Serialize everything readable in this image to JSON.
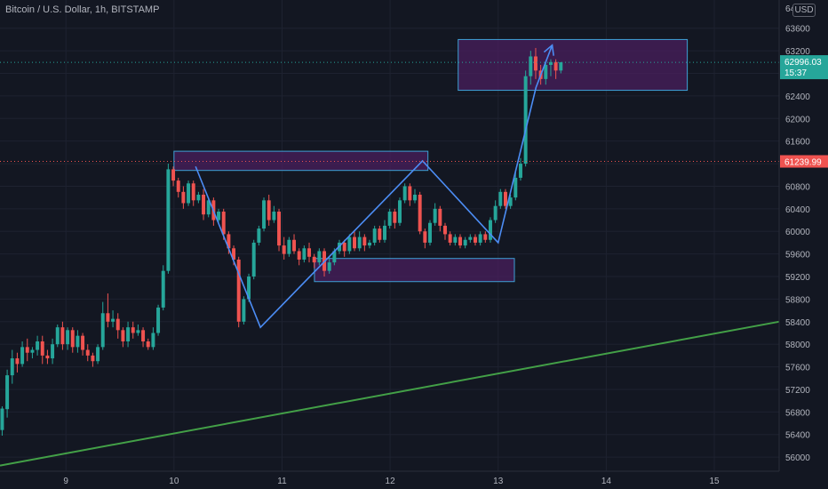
{
  "header": {
    "title": "Bitcoin / U.S. Dollar, 1h, BITSTAMP"
  },
  "price_axis": {
    "currency": "USD",
    "top_label": "64"
  },
  "colors": {
    "background": "#131722",
    "grid": "#1e2230",
    "axis_text": "#b2b5be",
    "up": "#26a69a",
    "down": "#ef5350",
    "trendline": "#43a047",
    "pattern": "#4c8df5",
    "zone_fill": "#4a1f5e",
    "zone_stroke": "#3ea1d6",
    "last_price_bg": "#26a69a",
    "level_bg": "#ef5350"
  },
  "last_price": {
    "value": "62996.03",
    "countdown": "15:37"
  },
  "marked_level": {
    "value": "61239.99"
  },
  "chart_data": {
    "type": "candlestick",
    "yticks": [
      56000,
      56400,
      56800,
      57200,
      57600,
      58000,
      58400,
      58800,
      59200,
      59600,
      60000,
      60400,
      60800,
      61200,
      61600,
      62000,
      62400,
      62800,
      63200,
      63600
    ],
    "xticks": [
      {
        "label": "9",
        "x": 9
      },
      {
        "label": "10",
        "x": 10
      },
      {
        "label": "11",
        "x": 11
      },
      {
        "label": "12",
        "x": 12
      },
      {
        "label": "13",
        "x": 13
      },
      {
        "label": "14",
        "x": 14
      },
      {
        "label": "15",
        "x": 15
      }
    ],
    "ylim": [
      55750,
      64100
    ],
    "xlim": [
      8.39,
      15.6
    ],
    "candles": [
      [
        56480,
        56860,
        56380,
        56900
      ],
      [
        56850,
        57450,
        56700,
        57550
      ],
      [
        57450,
        57750,
        57300,
        57900
      ],
      [
        57750,
        57650,
        57500,
        57850
      ],
      [
        57650,
        57950,
        57600,
        58050
      ],
      [
        57950,
        57850,
        57700,
        58100
      ],
      [
        57850,
        57900,
        57750,
        57950
      ],
      [
        57900,
        58050,
        57800,
        58150
      ],
      [
        58050,
        57800,
        57650,
        58150
      ],
      [
        57800,
        57750,
        57650,
        57900
      ],
      [
        57750,
        58000,
        57650,
        58100
      ],
      [
        58000,
        58300,
        57950,
        58350
      ],
      [
        58300,
        58000,
        57900,
        58400
      ],
      [
        58000,
        58250,
        57900,
        58300
      ],
      [
        58250,
        57950,
        57850,
        58300
      ],
      [
        57950,
        58150,
        57850,
        58250
      ],
      [
        58150,
        57900,
        57800,
        58200
      ],
      [
        57900,
        57800,
        57700,
        58000
      ],
      [
        57800,
        57700,
        57600,
        57850
      ],
      [
        57700,
        57950,
        57650,
        58000
      ],
      [
        57950,
        58550,
        57900,
        58750
      ],
      [
        58550,
        58400,
        58300,
        58900
      ],
      [
        58400,
        58450,
        58300,
        58600
      ],
      [
        58450,
        58250,
        58100,
        58550
      ],
      [
        58250,
        58050,
        57950,
        58300
      ],
      [
        58050,
        58300,
        57950,
        58400
      ],
      [
        58300,
        58200,
        58100,
        58400
      ],
      [
        58200,
        58250,
        58150,
        58350
      ],
      [
        58250,
        58050,
        57950,
        58300
      ],
      [
        58050,
        57950,
        57900,
        58100
      ],
      [
        57950,
        58200,
        57900,
        58300
      ],
      [
        58200,
        58650,
        58150,
        58700
      ],
      [
        58650,
        59300,
        58600,
        59400
      ],
      [
        59300,
        61100,
        59250,
        61200
      ],
      [
        61100,
        60900,
        60800,
        61150
      ],
      [
        60900,
        60700,
        60600,
        60950
      ],
      [
        60700,
        60500,
        60400,
        60800
      ],
      [
        60500,
        60850,
        60450,
        60900
      ],
      [
        60850,
        60550,
        60450,
        60900
      ],
      [
        60550,
        60650,
        60500,
        60700
      ],
      [
        60650,
        60300,
        60200,
        60750
      ],
      [
        60300,
        60550,
        60250,
        60600
      ],
      [
        60550,
        60200,
        60100,
        60600
      ],
      [
        60200,
        60350,
        60150,
        60400
      ],
      [
        60350,
        59950,
        59850,
        60400
      ],
      [
        59950,
        59700,
        59600,
        60000
      ],
      [
        59700,
        59500,
        59400,
        59750
      ],
      [
        59500,
        58400,
        58300,
        59550
      ],
      [
        58400,
        58800,
        58350,
        58850
      ],
      [
        58800,
        59200,
        58750,
        59250
      ],
      [
        59200,
        59800,
        59150,
        59850
      ],
      [
        59800,
        60050,
        59750,
        60100
      ],
      [
        60050,
        60550,
        60000,
        60600
      ],
      [
        60550,
        60200,
        60100,
        60650
      ],
      [
        60200,
        60350,
        60150,
        60450
      ],
      [
        60350,
        59750,
        59650,
        60400
      ],
      [
        59750,
        59600,
        59500,
        59900
      ],
      [
        59600,
        59850,
        59550,
        59900
      ],
      [
        59850,
        59650,
        59600,
        59950
      ],
      [
        59650,
        59500,
        59400,
        59700
      ],
      [
        59500,
        59700,
        59450,
        59750
      ],
      [
        59700,
        59550,
        59450,
        59800
      ],
      [
        59550,
        59450,
        59350,
        59600
      ],
      [
        59450,
        59650,
        59400,
        59700
      ],
      [
        59650,
        59300,
        59200,
        59700
      ],
      [
        59300,
        59450,
        59250,
        59550
      ],
      [
        59450,
        59650,
        59400,
        59700
      ],
      [
        59650,
        59800,
        59600,
        59850
      ],
      [
        59800,
        59650,
        59550,
        59850
      ],
      [
        59650,
        59900,
        59600,
        59950
      ],
      [
        59900,
        59700,
        59650,
        60000
      ],
      [
        59700,
        59900,
        59650,
        60000
      ],
      [
        59900,
        59750,
        59650,
        59950
      ],
      [
        59750,
        59800,
        59700,
        59850
      ],
      [
        59800,
        60050,
        59750,
        60100
      ],
      [
        60050,
        59850,
        59800,
        60100
      ],
      [
        59850,
        60100,
        59800,
        60200
      ],
      [
        60100,
        60350,
        60050,
        60400
      ],
      [
        60350,
        60150,
        60050,
        60400
      ],
      [
        60150,
        60550,
        60100,
        60600
      ],
      [
        60550,
        60800,
        60500,
        60850
      ],
      [
        60800,
        60550,
        60450,
        60850
      ],
      [
        60550,
        60650,
        60500,
        60750
      ],
      [
        60650,
        60000,
        59950,
        60700
      ],
      [
        60000,
        59800,
        59700,
        60050
      ],
      [
        59800,
        60150,
        59750,
        60200
      ],
      [
        60150,
        60400,
        60100,
        60500
      ],
      [
        60400,
        60100,
        60000,
        60450
      ],
      [
        60100,
        59950,
        59850,
        60150
      ],
      [
        59950,
        59800,
        59750,
        60000
      ],
      [
        59800,
        59900,
        59750,
        59950
      ],
      [
        59900,
        59750,
        59700,
        59950
      ],
      [
        59750,
        59850,
        59700,
        59900
      ],
      [
        59850,
        59900,
        59800,
        59950
      ],
      [
        59900,
        59800,
        59750,
        59950
      ],
      [
        59800,
        59950,
        59750,
        60000
      ],
      [
        59950,
        59850,
        59800,
        60000
      ],
      [
        59850,
        60200,
        59800,
        60250
      ],
      [
        60200,
        60450,
        60150,
        60550
      ],
      [
        60450,
        60700,
        60400,
        60750
      ],
      [
        60700,
        60450,
        60400,
        60750
      ],
      [
        60450,
        60600,
        60400,
        60650
      ],
      [
        60600,
        60950,
        60550,
        61050
      ],
      [
        60950,
        61200,
        60900,
        61300
      ],
      [
        61200,
        62750,
        61150,
        62850
      ],
      [
        62750,
        63100,
        62600,
        63200
      ],
      [
        63100,
        62850,
        62700,
        63250
      ],
      [
        62850,
        62700,
        62600,
        62950
      ],
      [
        62700,
        62950,
        62600,
        63000
      ],
      [
        62950,
        63000,
        62750,
        63050
      ],
      [
        63000,
        62850,
        62700,
        63050
      ],
      [
        62850,
        62996,
        62800,
        63000
      ]
    ],
    "trendline": {
      "from": [
        8.39,
        55850
      ],
      "to": [
        15.6,
        58400
      ]
    },
    "pattern_path": [
      [
        10.2,
        61150
      ],
      [
        10.8,
        58300
      ],
      [
        12.3,
        61250
      ],
      [
        13.0,
        59800
      ],
      [
        13.35,
        62550
      ],
      [
        13.5,
        63300
      ]
    ],
    "zones": [
      {
        "x0": 10.0,
        "x1": 12.35,
        "y0": 61080,
        "y1": 61420
      },
      {
        "x0": 11.3,
        "x1": 13.15,
        "y0": 59110,
        "y1": 59520
      },
      {
        "x0": 12.63,
        "x1": 14.75,
        "y0": 62500,
        "y1": 63400
      }
    ],
    "dotted_levels": [
      {
        "value": 62996.03,
        "color": "#26a69a"
      },
      {
        "value": 61239.99,
        "color": "#ef5350"
      }
    ]
  }
}
